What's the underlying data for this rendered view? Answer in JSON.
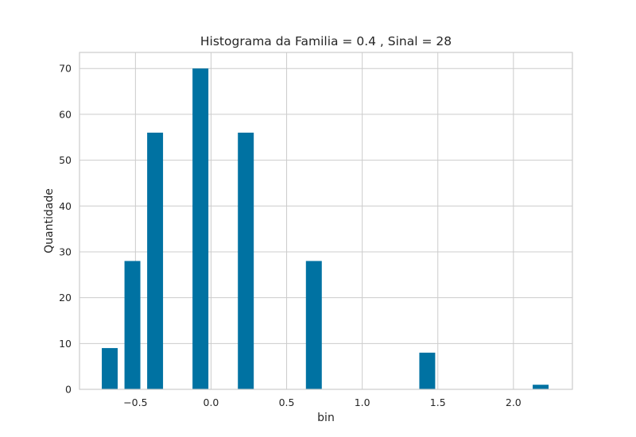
{
  "chart_data": {
    "type": "bar",
    "title": "Histograma da Familia = 0.4 , Sinal = 28",
    "xlabel": "bin",
    "ylabel": "Quantidade",
    "xlim": [
      -0.87,
      2.39
    ],
    "ylim": [
      0,
      73.5
    ],
    "grid": true,
    "bar_color": "#0072A2",
    "bar_width": 0.105,
    "x": [
      -0.67,
      -0.52,
      -0.37,
      -0.07,
      0.23,
      0.68,
      1.43,
      2.18
    ],
    "values": [
      9,
      28,
      56,
      70,
      56,
      28,
      8,
      1
    ],
    "x_ticks": [
      -0.5,
      0.0,
      0.5,
      1.0,
      1.5,
      2.0
    ],
    "x_tick_labels": [
      "−0.5",
      "0.0",
      "0.5",
      "1.0",
      "1.5",
      "2.0"
    ],
    "y_ticks": [
      0,
      10,
      20,
      30,
      40,
      50,
      60,
      70
    ],
    "y_tick_labels": [
      "0",
      "10",
      "20",
      "30",
      "40",
      "50",
      "60",
      "70"
    ]
  }
}
